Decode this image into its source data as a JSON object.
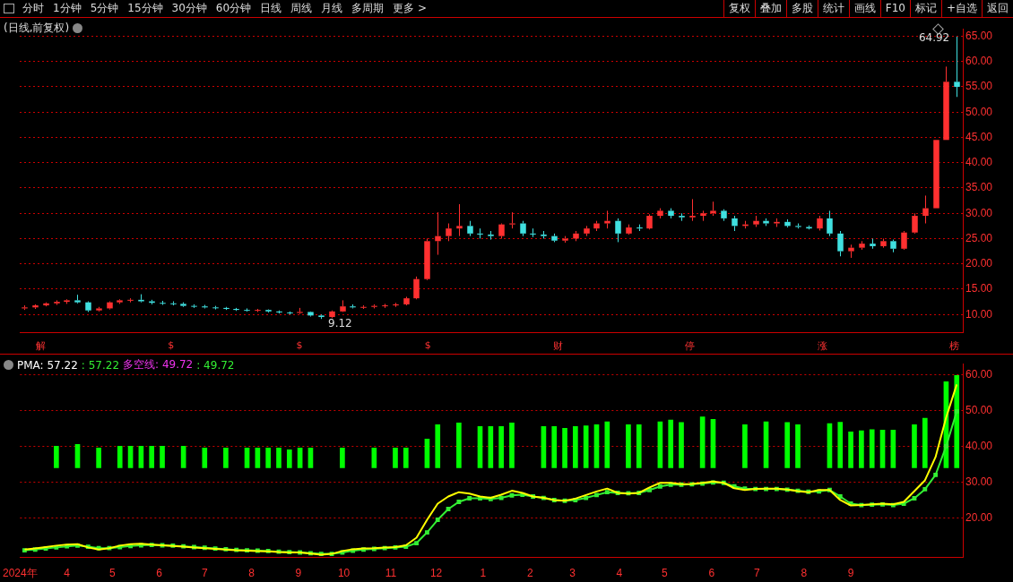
{
  "chart_data": [
    {
      "type": "other",
      "annotations": [
        "分时",
        "1分钟",
        "5分钟",
        "15分钟",
        "30分钟",
        "60分钟",
        "日线",
        "周线",
        "月线",
        "多周期",
        "更多 >"
      ]
    },
    {
      "type": "other",
      "annotations": [
        "复权",
        "叠加",
        "多股",
        "统计",
        "画线",
        "F10",
        "标记",
        "+自选",
        "返回"
      ]
    },
    {
      "type": "candlestick",
      "title": "(日线,前复权)",
      "x": [
        "2024-03-04",
        "2024-03-11",
        "2024-03-18",
        "2024-03-25",
        "2024-04-01",
        "2024-04-08",
        "2024-04-15",
        "2024-04-22",
        "2024-04-29",
        "2024-05-06",
        "2024-05-13",
        "2024-05-20",
        "2024-05-27",
        "2024-06-03",
        "2024-06-10",
        "2024-06-17",
        "2024-06-24",
        "2024-07-01",
        "2024-07-08",
        "2024-07-15",
        "2024-07-22",
        "2024-07-29",
        "2024-08-05",
        "2024-08-12",
        "2024-08-19",
        "2024-08-26",
        "2024-09-02",
        "2024-09-09",
        "2024-09-16",
        "2024-09-23",
        "2024-09-30",
        "2024-10-07",
        "2024-10-14",
        "2024-10-21",
        "2024-10-28",
        "2024-11-04",
        "2024-11-11",
        "2024-11-18",
        "2024-11-25",
        "2024-12-02",
        "2024-12-09",
        "2024-12-16",
        "2024-12-23",
        "2024-12-30",
        "2025-01-06",
        "2025-01-13",
        "2025-01-20",
        "2025-01-27",
        "2025-02-03",
        "2025-02-10",
        "2025-02-17",
        "2025-02-24",
        "2025-03-03",
        "2025-03-10",
        "2025-03-17",
        "2025-03-24",
        "2025-03-31",
        "2025-04-07",
        "2025-04-14",
        "2025-04-21",
        "2025-04-28",
        "2025-05-05",
        "2025-05-12",
        "2025-05-19",
        "2025-05-26",
        "2025-06-02",
        "2025-06-09",
        "2025-06-16",
        "2025-06-23",
        "2025-06-30",
        "2025-07-07",
        "2025-07-14",
        "2025-07-21",
        "2025-07-28",
        "2025-08-04",
        "2025-08-11",
        "2025-08-18",
        "2025-08-25",
        "2025-09-01",
        "2025-09-08",
        "2025-09-15",
        "2025-09-22",
        "2025-09-29",
        "2025-10-06",
        "2025-10-13",
        "2025-10-20",
        "2025-10-27",
        "2025-11-03",
        "2025-11-10"
      ],
      "ohlc": [
        [
          11.2,
          11.8,
          10.9,
          11.4
        ],
        [
          11.4,
          12.0,
          11.1,
          11.8
        ],
        [
          11.8,
          12.4,
          11.6,
          12.2
        ],
        [
          12.2,
          12.8,
          11.9,
          12.5
        ],
        [
          12.5,
          13.0,
          12.1,
          12.8
        ],
        [
          12.8,
          13.9,
          12.2,
          12.4
        ],
        [
          12.4,
          12.6,
          10.5,
          10.8
        ],
        [
          10.8,
          11.5,
          10.6,
          11.2
        ],
        [
          11.2,
          12.6,
          11.0,
          12.4
        ],
        [
          12.4,
          13.0,
          12.1,
          12.8
        ],
        [
          12.8,
          13.2,
          12.4,
          12.9
        ],
        [
          12.9,
          14.0,
          12.4,
          12.6
        ],
        [
          12.6,
          12.9,
          12.0,
          12.3
        ],
        [
          12.3,
          12.7,
          11.9,
          12.2
        ],
        [
          12.2,
          12.6,
          11.8,
          12.1
        ],
        [
          12.1,
          12.4,
          11.5,
          11.7
        ],
        [
          11.7,
          12.0,
          11.3,
          11.6
        ],
        [
          11.6,
          11.9,
          11.2,
          11.4
        ],
        [
          11.4,
          11.7,
          11.0,
          11.3
        ],
        [
          11.3,
          11.5,
          10.9,
          11.1
        ],
        [
          11.1,
          11.3,
          10.7,
          10.9
        ],
        [
          10.9,
          11.2,
          10.6,
          10.8
        ],
        [
          10.8,
          11.1,
          10.5,
          10.9
        ],
        [
          10.9,
          11.0,
          10.4,
          10.6
        ],
        [
          10.6,
          10.8,
          10.2,
          10.4
        ],
        [
          10.4,
          10.6,
          10.0,
          10.3
        ],
        [
          10.3,
          11.3,
          10.1,
          10.5
        ],
        [
          10.5,
          10.6,
          9.6,
          9.8
        ],
        [
          9.8,
          10.0,
          9.12,
          9.5
        ],
        [
          9.5,
          10.8,
          9.3,
          10.6
        ],
        [
          10.6,
          12.8,
          10.5,
          11.6
        ],
        [
          11.6,
          12.0,
          11.2,
          11.4
        ],
        [
          11.4,
          11.8,
          11.1,
          11.5
        ],
        [
          11.5,
          12.0,
          11.2,
          11.7
        ],
        [
          11.7,
          12.1,
          11.3,
          11.8
        ],
        [
          11.8,
          12.3,
          11.5,
          12.0
        ],
        [
          12.0,
          13.5,
          11.8,
          13.2
        ],
        [
          13.2,
          17.5,
          13.0,
          17.0
        ],
        [
          17.0,
          25.0,
          16.8,
          24.5
        ],
        [
          24.5,
          30.2,
          21.8,
          25.5
        ],
        [
          25.5,
          28.0,
          24.5,
          27.0
        ],
        [
          27.0,
          31.8,
          25.5,
          27.5
        ],
        [
          27.5,
          28.5,
          25.5,
          26.0
        ],
        [
          26.0,
          27.0,
          25.0,
          25.8
        ],
        [
          25.8,
          26.5,
          24.8,
          25.5
        ],
        [
          25.5,
          28.0,
          25.0,
          27.8
        ],
        [
          27.8,
          30.2,
          27.0,
          28.0
        ],
        [
          28.0,
          28.5,
          25.5,
          26.0
        ],
        [
          26.0,
          27.0,
          25.3,
          25.8
        ],
        [
          25.8,
          26.5,
          25.0,
          25.5
        ],
        [
          25.5,
          26.0,
          24.3,
          24.6
        ],
        [
          24.6,
          25.5,
          24.2,
          25.0
        ],
        [
          25.0,
          26.5,
          24.5,
          26.0
        ],
        [
          26.0,
          27.5,
          25.5,
          27.0
        ],
        [
          27.0,
          28.5,
          26.5,
          28.0
        ],
        [
          28.0,
          30.5,
          27.0,
          28.5
        ],
        [
          28.5,
          29.0,
          24.3,
          26.0
        ],
        [
          26.0,
          27.8,
          25.8,
          27.2
        ],
        [
          27.2,
          27.8,
          26.5,
          27.0
        ],
        [
          27.0,
          29.8,
          26.8,
          29.5
        ],
        [
          29.5,
          31.0,
          29.0,
          30.5
        ],
        [
          30.5,
          31.0,
          29.0,
          29.5
        ],
        [
          29.5,
          30.0,
          28.5,
          29.2
        ],
        [
          29.2,
          32.8,
          28.5,
          29.5
        ],
        [
          29.5,
          30.5,
          28.5,
          30.0
        ],
        [
          30.0,
          32.3,
          29.5,
          30.5
        ],
        [
          30.5,
          30.8,
          28.5,
          29.0
        ],
        [
          29.0,
          29.5,
          26.5,
          27.5
        ],
        [
          27.5,
          28.5,
          27.0,
          27.8
        ],
        [
          27.8,
          29.5,
          27.3,
          28.5
        ],
        [
          28.5,
          29.0,
          27.5,
          28.0
        ],
        [
          28.0,
          29.0,
          27.3,
          28.3
        ],
        [
          28.3,
          28.8,
          27.2,
          27.5
        ],
        [
          27.5,
          28.0,
          27.0,
          27.3
        ],
        [
          27.3,
          27.6,
          26.8,
          27.0
        ],
        [
          27.0,
          29.5,
          26.6,
          29.0
        ],
        [
          29.0,
          30.5,
          25.5,
          26.0
        ],
        [
          26.0,
          26.5,
          21.5,
          22.5
        ],
        [
          22.5,
          23.8,
          21.2,
          23.2
        ],
        [
          23.2,
          24.5,
          22.8,
          24.0
        ],
        [
          24.0,
          25.0,
          23.0,
          23.5
        ],
        [
          23.5,
          25.0,
          23.2,
          24.5
        ],
        [
          24.5,
          24.8,
          22.3,
          23.0
        ],
        [
          23.0,
          26.5,
          22.8,
          26.2
        ],
        [
          26.2,
          30.0,
          26.0,
          29.5
        ],
        [
          29.5,
          33.5,
          28.0,
          31.0
        ],
        [
          31.0,
          44.5,
          31.0,
          44.5
        ],
        [
          44.5,
          59.0,
          44.5,
          56.0
        ],
        [
          56.0,
          64.92,
          53.0,
          55.0
        ]
      ],
      "colors": [
        "#ff3030",
        "#ff3030",
        "#ff3030",
        "#ff3030",
        "#ff3030",
        "#40e0e0",
        "#40e0e0",
        "#ff3030",
        "#ff3030",
        "#ff3030",
        "#ff3030",
        "#40e0e0",
        "#40e0e0",
        "#40e0e0",
        "#40e0e0",
        "#40e0e0",
        "#40e0e0",
        "#40e0e0",
        "#40e0e0",
        "#40e0e0",
        "#40e0e0",
        "#40e0e0",
        "#ff3030",
        "#40e0e0",
        "#40e0e0",
        "#40e0e0",
        "#ff3030",
        "#40e0e0",
        "#40e0e0",
        "#ff3030",
        "#ff3030",
        "#40e0e0",
        "#ff3030",
        "#ff3030",
        "#ff3030",
        "#ff3030",
        "#ff3030",
        "#ff3030",
        "#ff3030",
        "#ff3030",
        "#ff3030",
        "#ff3030",
        "#40e0e0",
        "#40e0e0",
        "#40e0e0",
        "#ff3030",
        "#ff3030",
        "#40e0e0",
        "#40e0e0",
        "#40e0e0",
        "#40e0e0",
        "#ff3030",
        "#ff3030",
        "#ff3030",
        "#ff3030",
        "#ff3030",
        "#40e0e0",
        "#ff3030",
        "#40e0e0",
        "#ff3030",
        "#ff3030",
        "#40e0e0",
        "#40e0e0",
        "#ff3030",
        "#ff3030",
        "#ff3030",
        "#40e0e0",
        "#40e0e0",
        "#ff3030",
        "#ff3030",
        "#40e0e0",
        "#ff3030",
        "#40e0e0",
        "#40e0e0",
        "#40e0e0",
        "#ff3030",
        "#40e0e0",
        "#40e0e0",
        "#ff3030",
        "#ff3030",
        "#40e0e0",
        "#ff3030",
        "#40e0e0",
        "#ff3030",
        "#ff3030",
        "#ff3030",
        "#ff3030",
        "#ff3030",
        "#40e0e0"
      ],
      "xlim": [
        "2024-03-01",
        "2025-11-14"
      ],
      "ylim": [
        6.5,
        66.5
      ],
      "yticks": [
        {
          "value": 10,
          "label": "10.00"
        },
        {
          "value": 15,
          "label": "15.00"
        },
        {
          "value": 20,
          "label": "20.00"
        },
        {
          "value": 25,
          "label": "25.00"
        },
        {
          "value": 30,
          "label": "30.00"
        },
        {
          "value": 35,
          "label": "35.00"
        },
        {
          "value": 40,
          "label": "40.00"
        },
        {
          "value": 45,
          "label": "45.00"
        },
        {
          "value": 50,
          "label": "50.00"
        },
        {
          "value": 55,
          "label": "55.00"
        },
        {
          "value": 60,
          "label": "60.00"
        },
        {
          "value": 65,
          "label": "65.00"
        }
      ],
      "grid": "y",
      "tick_labels": "y",
      "annotations": [
        "64.92",
        "9.12",
        "解",
        "$",
        "$",
        "$",
        "财",
        "停",
        "涨",
        "榜"
      ]
    },
    {
      "type": "line",
      "x": [
        "2024-03-04",
        "2024-03-11",
        "2024-03-18",
        "2024-03-25",
        "2024-04-01",
        "2024-04-08",
        "2024-04-15",
        "2024-04-22",
        "2024-04-29",
        "2024-05-06",
        "2024-05-13",
        "2024-05-20",
        "2024-05-27",
        "2024-06-03",
        "2024-06-10",
        "2024-06-17",
        "2024-06-24",
        "2024-07-01",
        "2024-07-08",
        "2024-07-15",
        "2024-07-22",
        "2024-07-29",
        "2024-08-05",
        "2024-08-12",
        "2024-08-19",
        "2024-08-26",
        "2024-09-02",
        "2024-09-09",
        "2024-09-16",
        "2024-09-23",
        "2024-09-30",
        "2024-10-07",
        "2024-10-14",
        "2024-10-21",
        "2024-10-28",
        "2024-11-04",
        "2024-11-11",
        "2024-11-18",
        "2024-11-25",
        "2024-12-02",
        "2024-12-09",
        "2024-12-16",
        "2024-12-23",
        "2024-12-30",
        "2025-01-06",
        "2025-01-13",
        "2025-01-20",
        "2025-01-27",
        "2025-02-03",
        "2025-02-10",
        "2025-02-17",
        "2025-02-24",
        "2025-03-03",
        "2025-03-10",
        "2025-03-17",
        "2025-03-24",
        "2025-03-31",
        "2025-04-07",
        "2025-04-14",
        "2025-04-21",
        "2025-04-28",
        "2025-05-05",
        "2025-05-12",
        "2025-05-19",
        "2025-05-26",
        "2025-06-02",
        "2025-06-09",
        "2025-06-16",
        "2025-06-23",
        "2025-06-30",
        "2025-07-07",
        "2025-07-14",
        "2025-07-21",
        "2025-07-28",
        "2025-08-04",
        "2025-08-11",
        "2025-08-18",
        "2025-08-25",
        "2025-09-01",
        "2025-09-08",
        "2025-09-15",
        "2025-09-22",
        "2025-09-29",
        "2025-10-06",
        "2025-10-13",
        "2025-10-20",
        "2025-10-27",
        "2025-11-03",
        "2025-11-10"
      ],
      "series": [
        {
          "color": "#ffff00",
          "values": [
            11.2,
            11.5,
            11.9,
            12.3,
            12.6,
            12.7,
            11.8,
            11.2,
            11.6,
            12.3,
            12.7,
            12.8,
            12.6,
            12.4,
            12.2,
            12.0,
            11.8,
            11.6,
            11.4,
            11.2,
            11.0,
            10.9,
            10.8,
            10.7,
            10.5,
            10.4,
            10.4,
            10.1,
            9.8,
            10.0,
            10.8,
            11.3,
            11.5,
            11.6,
            11.8,
            11.9,
            12.4,
            14.5,
            19.5,
            24.0,
            26.0,
            27.2,
            26.8,
            26.0,
            25.6,
            26.5,
            27.6,
            27.0,
            26.0,
            25.6,
            25.0,
            24.8,
            25.4,
            26.4,
            27.4,
            28.2,
            27.0,
            26.8,
            27.0,
            28.5,
            29.8,
            29.8,
            29.4,
            29.5,
            29.8,
            30.2,
            29.8,
            28.3,
            27.8,
            28.1,
            28.2,
            28.2,
            27.9,
            27.5,
            27.2,
            27.8,
            27.8,
            25.0,
            23.5,
            23.6,
            23.8,
            24.0,
            23.8,
            24.5,
            27.5,
            30.5,
            37.0,
            48.0,
            57.22
          ]
        },
        {
          "color": "#33ee33",
          "marker": "square",
          "values": [
            11.0,
            11.2,
            11.5,
            11.8,
            12.1,
            12.3,
            12.0,
            11.6,
            11.6,
            11.9,
            12.2,
            12.4,
            12.5,
            12.4,
            12.3,
            12.1,
            11.9,
            11.7,
            11.5,
            11.3,
            11.1,
            11.0,
            10.9,
            10.8,
            10.6,
            10.5,
            10.4,
            10.2,
            10.0,
            10.0,
            10.4,
            10.9,
            11.2,
            11.4,
            11.6,
            11.8,
            12.0,
            13.0,
            16.0,
            19.5,
            22.5,
            24.5,
            25.5,
            25.5,
            25.3,
            25.6,
            26.3,
            26.5,
            26.0,
            25.6,
            25.0,
            24.8,
            25.0,
            25.6,
            26.4,
            27.2,
            27.0,
            26.9,
            27.0,
            27.8,
            28.8,
            29.3,
            29.3,
            29.4,
            29.6,
            29.9,
            29.8,
            28.8,
            28.2,
            28.1,
            28.1,
            28.1,
            27.9,
            27.6,
            27.3,
            27.4,
            27.8,
            26.0,
            24.0,
            23.6,
            23.7,
            23.8,
            23.6,
            24.0,
            25.5,
            28.0,
            32.0,
            40.0,
            49.72
          ]
        },
        {
          "type": "bar",
          "color": "#00ff00",
          "base": [
            null,
            null,
            null,
            34,
            null,
            34,
            null,
            34,
            null,
            34,
            34,
            34,
            34,
            34,
            null,
            34,
            null,
            34,
            null,
            34,
            null,
            34,
            34,
            34,
            34,
            34,
            34,
            34,
            null,
            null,
            34,
            null,
            null,
            34,
            null,
            34,
            34,
            null,
            34,
            34,
            null,
            34,
            null,
            34,
            34,
            34,
            34,
            null,
            null,
            34,
            34,
            34,
            34,
            34,
            34,
            34,
            null,
            34,
            34,
            null,
            34,
            34,
            34,
            null,
            34,
            34,
            null,
            null,
            34,
            null,
            34,
            null,
            34,
            34,
            null,
            null,
            34,
            34,
            34,
            34,
            34,
            34,
            34,
            null,
            34,
            34,
            null,
            34,
            34
          ],
          "values": [
            null,
            null,
            null,
            6,
            null,
            6.5,
            null,
            5.5,
            null,
            6,
            6,
            6,
            6,
            6,
            null,
            6,
            null,
            5.5,
            null,
            5.5,
            null,
            5.5,
            5.5,
            5.5,
            5.5,
            5,
            5.5,
            5.5,
            null,
            null,
            5.5,
            null,
            null,
            5.5,
            null,
            5.5,
            5.5,
            null,
            8,
            12,
            null,
            12.5,
            null,
            11.5,
            11.5,
            11.5,
            12.5,
            null,
            null,
            11.5,
            11.5,
            11,
            11.5,
            11.7,
            12,
            12.8,
            null,
            12,
            12,
            null,
            12.8,
            13.3,
            12.6,
            null,
            14.2,
            13.5,
            null,
            null,
            12,
            null,
            12.8,
            null,
            12.6,
            12,
            null,
            null,
            12.3,
            12.7,
            10,
            10.3,
            10.6,
            10.5,
            10.5,
            null,
            12,
            13.8,
            null,
            24,
            25.7
          ]
        }
      ],
      "xlim": [
        "2024-03-01",
        "2025-11-14"
      ],
      "xticks": [
        {
          "value": "2024-03-01",
          "label": "2024年"
        },
        {
          "value": "2024-04-01",
          "label": "4"
        },
        {
          "value": "2024-05-01",
          "label": "5"
        },
        {
          "value": "2024-06-01",
          "label": "6"
        },
        {
          "value": "2024-07-01",
          "label": "7"
        },
        {
          "value": "2024-08-01",
          "label": "8"
        },
        {
          "value": "2024-09-01",
          "label": "9"
        },
        {
          "value": "2024-10-01",
          "label": "10"
        },
        {
          "value": "2024-11-01",
          "label": "11"
        },
        {
          "value": "2024-12-01",
          "label": "12"
        },
        {
          "value": "2025-01-01",
          "label": "1"
        },
        {
          "value": "2025-02-01",
          "label": "2"
        },
        {
          "value": "2025-03-01",
          "label": "3"
        },
        {
          "value": "2025-04-01",
          "label": "4"
        },
        {
          "value": "2025-05-01",
          "label": "5"
        },
        {
          "value": "2025-06-01",
          "label": "6"
        },
        {
          "value": "2025-07-01",
          "label": "7"
        },
        {
          "value": "2025-08-01",
          "label": "8"
        },
        {
          "value": "2025-09-01",
          "label": "9"
        }
      ],
      "ylim": [
        9,
        63
      ],
      "yticks": [
        {
          "value": 20,
          "label": "20.00"
        },
        {
          "value": 30,
          "label": "30.00"
        },
        {
          "value": 40,
          "label": "40.00"
        },
        {
          "value": 50,
          "label": "50.00"
        },
        {
          "value": 60,
          "label": "60.00"
        }
      ],
      "grid": "y",
      "annotations": [
        "PMA: 57.22",
        ": 57.22",
        "多空线: 49.72",
        ": 49.72"
      ]
    }
  ]
}
